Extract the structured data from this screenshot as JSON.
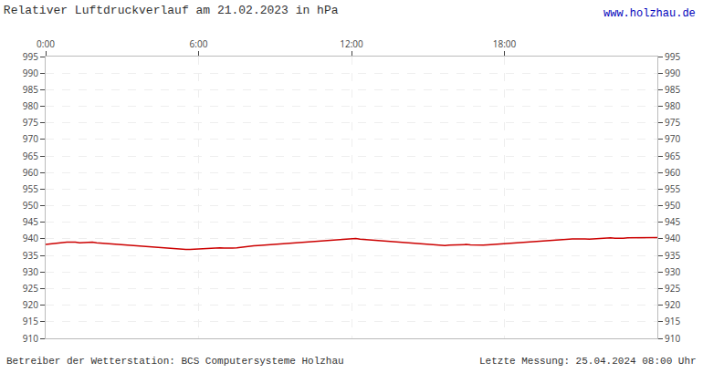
{
  "chart_data": {
    "type": "line",
    "title": "Relativer Luftdruckverlauf am 21.02.2023 in hPa",
    "annotations": [
      "www.holzhau.de",
      "Betreiber der Wetterstation: BCS Computersysteme Holzhau",
      "Letzte Messung: 25.04.2024 08:00 Uhr"
    ],
    "x": [
      0.0,
      0.167,
      0.333,
      0.5,
      0.667,
      0.833,
      1.0,
      1.167,
      1.333,
      1.5,
      1.667,
      1.833,
      2.0,
      2.167,
      2.333,
      2.5,
      2.667,
      2.833,
      3.0,
      3.167,
      3.333,
      3.5,
      3.667,
      3.833,
      4.0,
      4.167,
      4.333,
      4.5,
      4.667,
      4.833,
      5.0,
      5.167,
      5.333,
      5.5,
      5.667,
      5.833,
      6.0,
      6.167,
      6.333,
      6.5,
      6.667,
      6.833,
      7.0,
      7.167,
      7.333,
      7.5,
      7.667,
      7.833,
      8.0,
      8.167,
      8.333,
      8.5,
      8.667,
      8.833,
      9.0,
      9.167,
      9.333,
      9.5,
      9.667,
      9.833,
      10.0,
      10.167,
      10.333,
      10.5,
      10.667,
      10.833,
      11.0,
      11.167,
      11.333,
      11.5,
      11.667,
      11.833,
      12.0,
      12.167,
      12.333,
      12.5,
      12.667,
      12.833,
      13.0,
      13.167,
      13.333,
      13.5,
      13.667,
      13.833,
      14.0,
      14.167,
      14.333,
      14.5,
      14.667,
      14.833,
      15.0,
      15.167,
      15.333,
      15.5,
      15.667,
      15.833,
      16.0,
      16.167,
      16.333,
      16.5,
      16.667,
      16.833,
      17.0,
      17.167,
      17.333,
      17.5,
      17.667,
      17.833,
      18.0,
      18.167,
      18.333,
      18.5,
      18.667,
      18.833,
      19.0,
      19.167,
      19.333,
      19.5,
      19.667,
      19.833,
      20.0,
      20.167,
      20.333,
      20.5,
      20.667,
      20.833,
      21.0,
      21.167,
      21.333,
      21.5,
      21.667,
      21.833,
      22.0,
      22.167,
      22.333,
      22.5,
      22.667,
      22.833,
      23.0,
      23.167,
      23.333,
      23.5,
      23.667,
      23.833,
      24.0
    ],
    "values": [
      938.3,
      938.5,
      938.6,
      938.7,
      938.9,
      939.0,
      939.1,
      939.0,
      938.8,
      938.9,
      939.1,
      939.0,
      938.8,
      938.7,
      938.6,
      938.5,
      938.6,
      938.4,
      938.3,
      938.2,
      938.1,
      938.0,
      937.9,
      937.8,
      937.7,
      937.6,
      937.5,
      937.4,
      937.3,
      937.2,
      937.1,
      937.0,
      936.9,
      936.8,
      936.8,
      936.9,
      937.0,
      937.1,
      937.2,
      937.3,
      937.4,
      937.3,
      937.2,
      937.1,
      937.2,
      937.3,
      937.5,
      937.6,
      937.8,
      937.9,
      938.0,
      938.1,
      938.2,
      938.3,
      938.4,
      938.5,
      938.6,
      938.7,
      938.7,
      938.8,
      938.9,
      939.0,
      939.0,
      939.1,
      939.2,
      939.3,
      939.4,
      939.5,
      939.6,
      939.7,
      939.8,
      939.9,
      940.0,
      940.1,
      939.9,
      939.8,
      939.7,
      939.6,
      939.5,
      939.4,
      939.3,
      939.2,
      939.1,
      939.0,
      938.9,
      938.8,
      938.7,
      938.6,
      938.5,
      938.4,
      938.3,
      938.2,
      938.2,
      938.1,
      938.0,
      938.1,
      938.2,
      938.3,
      938.4,
      938.3,
      938.2,
      938.1,
      938.0,
      938.1,
      938.2,
      938.3,
      938.4,
      938.5,
      938.6,
      938.7,
      938.8,
      938.9,
      939.0,
      939.1,
      939.2,
      939.3,
      939.4,
      939.5,
      939.5,
      939.6,
      939.7,
      939.8,
      939.8,
      939.9,
      940.0,
      940.0,
      940.1,
      940.0,
      939.9,
      940.0,
      940.1,
      940.2,
      940.2,
      940.3,
      940.2,
      940.1,
      940.2,
      940.3,
      940.3,
      940.2,
      940.3,
      940.4,
      940.4,
      940.3,
      940.4
    ],
    "color": "#cc0000",
    "xlim": [
      0,
      24
    ],
    "xticks": [
      {
        "value": 0,
        "label": "0:00"
      },
      {
        "value": 6,
        "label": "6:00"
      },
      {
        "value": 12,
        "label": "12:00"
      },
      {
        "value": 18,
        "label": "18:00"
      }
    ],
    "ylim": [
      910,
      995
    ],
    "yticks": [
      910,
      915,
      920,
      925,
      930,
      935,
      940,
      945,
      950,
      955,
      960,
      965,
      970,
      975,
      980,
      985,
      990,
      995
    ],
    "grid": true
  }
}
